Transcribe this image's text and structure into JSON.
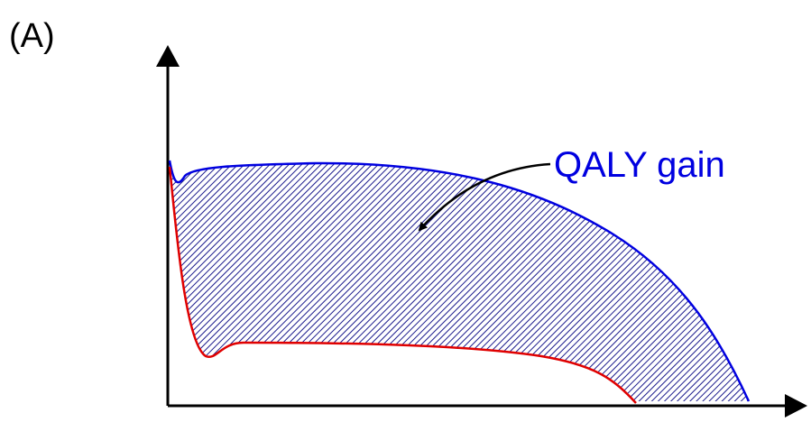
{
  "panel_label": "(A)",
  "annotation": "QALY gain"
}
